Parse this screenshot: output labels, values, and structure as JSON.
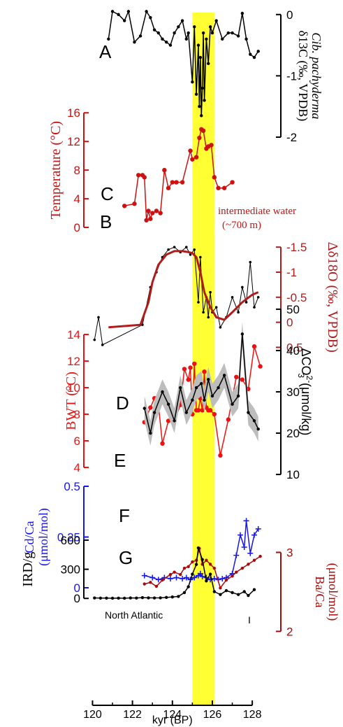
{
  "chart_data": {
    "type": "line",
    "xaxis": {
      "label": "kyr (BP)",
      "ticks": [
        120,
        122,
        124,
        126,
        128
      ],
      "range": [
        119.6,
        128.8
      ]
    },
    "highlight": {
      "label": "",
      "x_start": 125.0,
      "x_end": 126.1,
      "color": "#ffff33"
    },
    "panels": [
      {
        "letter": "A",
        "color": "#000000",
        "yrange": [
          0.1,
          -2.0
        ],
        "ticks": [
          "0",
          "-1",
          "-2"
        ],
        "tick_values": [
          0,
          -1,
          -2
        ],
        "axis_side": "right",
        "ylabel": "δ13C (‰, VPDB)",
        "ylabel2": "Cib. pachyderma",
        "markers": "dot",
        "x": [
          120.8,
          121.0,
          121.3,
          121.6,
          121.8,
          122.1,
          122.4,
          122.7,
          122.9,
          123.1,
          123.3,
          123.5,
          123.7,
          123.9,
          124.1,
          124.3,
          124.5,
          124.7,
          124.8,
          125.0,
          125.1,
          125.2,
          125.3,
          125.35,
          125.4,
          125.45,
          125.5,
          125.55,
          125.6,
          125.7,
          125.8,
          125.9,
          126.0,
          126.2,
          126.5,
          126.8,
          127.0,
          127.3,
          127.5,
          127.7,
          127.9,
          128.1,
          128.3
        ],
        "y": [
          -0.4,
          0.05,
          0.0,
          -0.1,
          0.05,
          -0.45,
          -0.35,
          0.05,
          -0.05,
          -0.25,
          -0.3,
          -0.4,
          -0.45,
          -0.5,
          -0.3,
          -0.2,
          -0.1,
          -0.4,
          -0.3,
          -1.1,
          -0.2,
          -1.3,
          -0.5,
          -1.5,
          -0.7,
          -1.65,
          -1.2,
          -0.3,
          -1.4,
          -0.4,
          -0.8,
          -0.2,
          -0.3,
          -0.1,
          -0.4,
          -0.3,
          -0.3,
          -0.35,
          0.02,
          -0.4,
          -0.65,
          -0.7,
          -0.6
        ]
      },
      {
        "letter": "B",
        "color": "#cc1111",
        "yrange": [
          0,
          17
        ],
        "ticks": [
          "0",
          "4",
          "8",
          "12",
          "16"
        ],
        "tick_values": [
          0,
          4,
          8,
          12,
          16
        ],
        "axis_side": "left",
        "ylabel": "Temperature (°C)",
        "markers": "circle",
        "annotation": "intermediate water",
        "annotation2": "(~700 m)",
        "x": [
          121.6,
          122.1,
          122.3,
          122.5,
          122.6,
          122.7,
          122.8,
          122.9,
          123.0,
          123.2,
          123.4,
          123.6,
          123.8,
          124.0,
          124.2,
          124.5,
          124.9,
          125.0,
          125.2,
          125.35,
          125.45,
          125.55,
          125.7,
          125.8,
          125.95,
          126.1,
          126.3,
          126.6,
          127.0
        ],
        "y": [
          3.0,
          3.3,
          7.3,
          7.3,
          7.0,
          1.0,
          2.3,
          1.2,
          2.0,
          2.3,
          2.0,
          8.0,
          5.5,
          6.3,
          6.3,
          6.3,
          10.7,
          9.5,
          9.8,
          12.5,
          13.7,
          13.5,
          11.0,
          11.3,
          11.5,
          7.0,
          5.5,
          5.5,
          6.3
        ]
      },
      {
        "letter": "C",
        "color": "#b01c1c",
        "yrange": [
          0.55,
          -1.6
        ],
        "ticks": [
          "-1.5",
          "-1",
          "-0.5",
          "0",
          "0.5"
        ],
        "tick_values": [
          -1.5,
          -1,
          -0.5,
          0,
          0.5
        ],
        "axis_side": "right",
        "ylabel": "Δδ18O (‰, VPDB)",
        "markers": "none",
        "raw_x": [
          120.1,
          120.3,
          120.5,
          122.5,
          122.9,
          123.2,
          123.5,
          123.8,
          124.1,
          124.4,
          124.7,
          124.9,
          125.1,
          125.3,
          125.4,
          125.55,
          125.7,
          125.8,
          125.9,
          126.0,
          126.2,
          126.4,
          126.7,
          127.0,
          127.3,
          127.5,
          127.7,
          127.9,
          128.1,
          128.3
        ],
        "raw_y": [
          0.35,
          -0.1,
          0.45,
          0.05,
          -0.7,
          -1.0,
          -1.3,
          -1.45,
          -1.5,
          -1.4,
          -1.5,
          -1.35,
          -1.45,
          -0.4,
          -1.3,
          -0.2,
          -0.5,
          -0.1,
          -0.6,
          -0.2,
          -0.3,
          0.1,
          -0.1,
          -0.5,
          -0.2,
          -0.7,
          -0.4,
          -1.2,
          -0.3,
          -0.5
        ],
        "smooth_x": [
          120.8,
          122.4,
          122.8,
          123.0,
          123.3,
          123.7,
          124.1,
          124.5,
          124.8,
          125.0,
          125.2,
          125.4,
          125.6,
          125.9,
          126.2,
          126.6,
          127.0,
          127.5,
          128.0,
          128.3
        ],
        "smooth_y": [
          0.1,
          0.05,
          -0.4,
          -0.8,
          -1.15,
          -1.35,
          -1.42,
          -1.42,
          -1.4,
          -1.38,
          -1.3,
          -1.0,
          -0.6,
          -0.3,
          -0.1,
          -0.05,
          -0.2,
          -0.4,
          -0.55,
          -0.6
        ]
      },
      {
        "letter": "D",
        "color": "#ee1111",
        "yrange": [
          4,
          14
        ],
        "ticks": [
          "4",
          "6",
          "8",
          "10",
          "12",
          "14"
        ],
        "tick_values": [
          4,
          6,
          8,
          10,
          12,
          14
        ],
        "axis_side": "left",
        "ylabel": "BWT (°C)",
        "markers": "circle",
        "x": [
          122.6,
          122.9,
          123.1,
          123.3,
          123.5,
          123.8,
          124.1,
          124.4,
          124.6,
          124.8,
          124.9,
          125.0,
          125.1,
          125.2,
          125.3,
          125.4,
          125.5,
          125.6,
          125.7,
          125.8,
          125.9,
          126.1,
          126.4,
          126.8,
          127.2,
          127.5,
          127.8,
          128.1,
          128.4
        ],
        "y": [
          7.4,
          8.5,
          9.2,
          8.7,
          5.8,
          7.5,
          7.5,
          8.7,
          11.4,
          10.6,
          11.5,
          8.0,
          11.8,
          8.3,
          8.3,
          9.2,
          8.3,
          11.2,
          8.5,
          8.3,
          8.3,
          8.0,
          4.9,
          7.6,
          10.8,
          10.6,
          9.9,
          13.1,
          11.6
        ]
      },
      {
        "letter": "E",
        "color": "#000000",
        "yrange": [
          9,
          51
        ],
        "ticks": [
          "10",
          "20",
          "30",
          "40",
          "50"
        ],
        "tick_values": [
          10,
          20,
          30,
          40,
          50
        ],
        "axis_side": "right",
        "ylabel": "ΔCO",
        "ylabel_sup": "2-",
        "ylabel_sub": "3",
        "ylabel_tail": " (μmol/kg)",
        "markers": "dot",
        "band_width": 3,
        "x": [
          122.6,
          122.9,
          123.1,
          123.5,
          123.8,
          124.1,
          124.4,
          124.7,
          125.0,
          125.2,
          125.45,
          125.6,
          125.8,
          126.0,
          126.3,
          126.6,
          127.0,
          127.3,
          127.5,
          127.8,
          128.1,
          128.3
        ],
        "y": [
          26,
          20,
          25,
          30,
          27,
          23,
          31,
          25,
          28,
          31,
          32,
          28,
          33,
          29,
          31,
          34,
          27,
          29,
          44,
          25,
          23,
          21
        ]
      },
      {
        "letter": "F",
        "color": "#1515ee",
        "yrange": [
          0,
          0.5
        ],
        "ticks": [
          "0",
          "0.25",
          "0.5"
        ],
        "tick_values": [
          0,
          0.25,
          0.5
        ],
        "axis_side": "left",
        "ylabel": "Cd/Ca",
        "ylabel2": "(μmol/mol)",
        "markers": "plus",
        "x": [
          122.6,
          123.0,
          123.3,
          123.6,
          123.9,
          124.2,
          124.5,
          124.7,
          124.9,
          125.1,
          125.3,
          125.4,
          125.5,
          125.7,
          125.9,
          126.1,
          126.3,
          126.5,
          126.7,
          127.0,
          127.2,
          127.4,
          127.6,
          127.7,
          127.9,
          128.1,
          128.3
        ],
        "y": [
          0.06,
          0.05,
          0.04,
          0.05,
          0.045,
          0.05,
          0.045,
          0.05,
          0.04,
          0.05,
          0.06,
          0.07,
          0.055,
          0.05,
          0.04,
          0.045,
          0.04,
          0.045,
          0.05,
          0.07,
          0.16,
          0.26,
          0.2,
          0.33,
          0.17,
          0.26,
          0.29
        ]
      },
      {
        "letter": "G",
        "color": "#a80a0a",
        "yrange": [
          1.95,
          3.5
        ],
        "ticks": [
          "2",
          "3"
        ],
        "tick_values": [
          2,
          3
        ],
        "axis_side": "right",
        "ylabel": "Ba/Ca",
        "ylabel2": "(μmol/mol)",
        "markers": "dot",
        "x": [
          122.6,
          122.9,
          123.2,
          123.5,
          123.9,
          124.1,
          124.4,
          124.6,
          124.8,
          125.0,
          125.2,
          125.35,
          125.5,
          125.7,
          125.9,
          126.1,
          126.4,
          126.7,
          127.0,
          127.2,
          127.5,
          127.8,
          128.1,
          128.4
        ],
        "y": [
          2.6,
          2.62,
          2.57,
          2.65,
          2.72,
          2.75,
          2.72,
          2.8,
          2.82,
          2.88,
          2.9,
          3.05,
          2.85,
          2.9,
          2.85,
          2.8,
          2.55,
          2.65,
          2.7,
          2.75,
          2.8,
          2.85,
          2.9,
          2.95
        ]
      },
      {
        "letter": "",
        "color": "#000000",
        "yrange": [
          -20,
          650
        ],
        "ticks": [
          "0",
          "300",
          "600"
        ],
        "tick_values": [
          0,
          300,
          600
        ],
        "axis_side": "left",
        "ylabel": "IRD/g",
        "markers": "dot",
        "annotation": "North Atlantic",
        "annotation_tick": "I",
        "x": [
          120.1,
          120.4,
          120.7,
          121.0,
          121.3,
          121.6,
          121.9,
          122.2,
          122.5,
          122.8,
          123.1,
          123.4,
          123.7,
          124.0,
          124.3,
          124.6,
          124.8,
          125.0,
          125.2,
          125.3,
          125.5,
          125.7,
          125.9,
          126.1,
          126.4,
          126.7,
          127.0,
          127.3,
          127.6,
          127.8,
          128.1
        ],
        "y": [
          5,
          3,
          3,
          2,
          3,
          2,
          5,
          4,
          8,
          6,
          5,
          6,
          10,
          15,
          20,
          60,
          120,
          250,
          350,
          520,
          400,
          180,
          250,
          70,
          40,
          80,
          60,
          40,
          70,
          30,
          90
        ]
      }
    ]
  }
}
